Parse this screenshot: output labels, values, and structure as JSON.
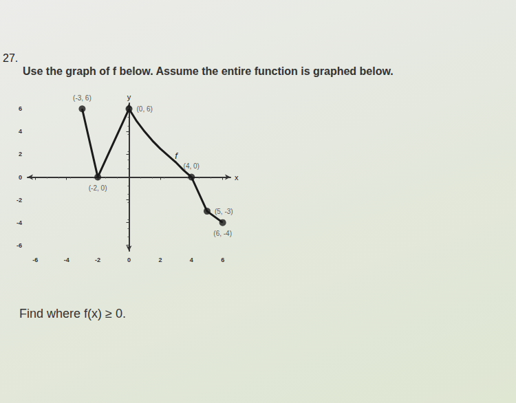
{
  "question": "27.",
  "instruction": "Use the graph of f below. Assume the entire function is graphed below.",
  "prompt": "Find where f(x) ≥ 0.",
  "chart_data": {
    "type": "line",
    "x_label": "x",
    "y_label": "y",
    "series": [
      {
        "name": "f",
        "color": "#1a1a1a",
        "x": [
          -3,
          -2,
          0,
          0.5,
          1,
          1.5,
          2,
          2.5,
          3,
          3.5,
          4,
          5,
          6
        ],
        "values": [
          6,
          0,
          6,
          4.9,
          4.0,
          3.2,
          2.5,
          1.9,
          1.3,
          0.6,
          0,
          -3,
          -4
        ]
      }
    ],
    "annotations": [
      {
        "x": -3,
        "y": 6,
        "text": "(-3, 6)"
      },
      {
        "x": 0,
        "y": 6,
        "text": "(0, 6)"
      },
      {
        "x": 4,
        "y": 0,
        "text": "(4, 0)"
      },
      {
        "x": -2,
        "y": 0,
        "text": "(-2, 0)"
      },
      {
        "x": 5,
        "y": -3,
        "text": "(5, -3)"
      },
      {
        "x": 6,
        "y": -4,
        "text": "(6, -4)"
      }
    ],
    "xlim": [
      -6.5,
      6.5
    ],
    "ylim": [
      -6.5,
      6.5
    ],
    "xticks": [
      -6,
      -4,
      -2,
      0,
      2,
      4,
      6
    ],
    "yticks": [
      -6,
      -4,
      -2,
      0,
      2,
      4,
      6
    ],
    "grid": false,
    "marker": "circle"
  }
}
